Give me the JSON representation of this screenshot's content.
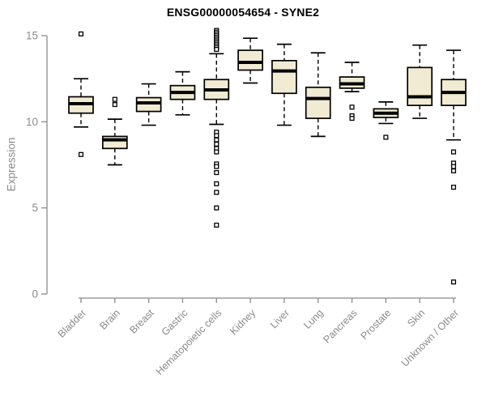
{
  "title": "ENSG00000054654 - SYNE2",
  "colors": {
    "box_fill": "#F0EBD2",
    "box_stroke": "#000000",
    "median": "#000000",
    "axis": "#8a8a8a",
    "outlier_fill": "#ffffff",
    "background": "#ffffff",
    "title": "#000000"
  },
  "chart_data": {
    "type": "boxplot",
    "title": "ENSG00000054654 - SYNE2",
    "xlabel": "",
    "ylabel": "Expression",
    "ylim": [
      0,
      15
    ],
    "yticks": [
      0,
      5,
      10,
      15
    ],
    "grid": false,
    "legend": "none",
    "categories": [
      "Bladder",
      "Brain",
      "Breast",
      "Gastric",
      "Hematopoietic cells",
      "Kidney",
      "Liver",
      "Lung",
      "Pancreas",
      "Prostate",
      "Skin",
      "Unknown / Other"
    ],
    "boxes": [
      {
        "category": "Bladder",
        "whisker_low": 9.7,
        "q1": 10.5,
        "median": 11.05,
        "q3": 11.45,
        "whisker_high": 12.5,
        "outliers": [
          15.1,
          8.1
        ]
      },
      {
        "category": "Brain",
        "whisker_low": 7.5,
        "q1": 8.45,
        "median": 8.95,
        "q3": 9.15,
        "whisker_high": 10.15,
        "outliers": [
          11.3,
          11.0
        ]
      },
      {
        "category": "Breast",
        "whisker_low": 9.8,
        "q1": 10.6,
        "median": 11.1,
        "q3": 11.4,
        "whisker_high": 12.2,
        "outliers": []
      },
      {
        "category": "Gastric",
        "whisker_low": 10.4,
        "q1": 11.3,
        "median": 11.7,
        "q3": 12.1,
        "whisker_high": 12.9,
        "outliers": []
      },
      {
        "category": "Hematopoietic cells",
        "whisker_low": 9.85,
        "q1": 11.3,
        "median": 11.85,
        "q3": 12.45,
        "whisker_high": 13.95,
        "outliers": [
          15.3,
          15.2,
          15.1,
          15.0,
          14.9,
          14.8,
          14.7,
          14.6,
          14.5,
          14.4,
          14.3,
          14.2,
          9.4,
          9.2,
          8.95,
          8.7,
          8.45,
          8.25,
          7.55,
          7.4,
          7.05,
          6.4,
          5.9,
          5.0,
          4.0
        ]
      },
      {
        "category": "Kidney",
        "whisker_low": 12.25,
        "q1": 13.0,
        "median": 13.45,
        "q3": 14.15,
        "whisker_high": 14.85,
        "outliers": []
      },
      {
        "category": "Liver",
        "whisker_low": 9.8,
        "q1": 11.65,
        "median": 12.95,
        "q3": 13.55,
        "whisker_high": 14.5,
        "outliers": []
      },
      {
        "category": "Lung",
        "whisker_low": 9.15,
        "q1": 10.2,
        "median": 11.35,
        "q3": 12.0,
        "whisker_high": 14.0,
        "outliers": []
      },
      {
        "category": "Pancreas",
        "whisker_low": 11.75,
        "q1": 11.95,
        "median": 12.2,
        "q3": 12.6,
        "whisker_high": 13.45,
        "outliers": [
          10.85,
          10.35,
          10.2
        ]
      },
      {
        "category": "Prostate",
        "whisker_low": 9.9,
        "q1": 10.25,
        "median": 10.5,
        "q3": 10.75,
        "whisker_high": 11.15,
        "outliers": [
          9.1
        ]
      },
      {
        "category": "Skin",
        "whisker_low": 10.2,
        "q1": 10.95,
        "median": 11.45,
        "q3": 13.15,
        "whisker_high": 14.45,
        "outliers": []
      },
      {
        "category": "Unknown / Other",
        "whisker_low": 8.95,
        "q1": 10.95,
        "median": 11.7,
        "q3": 12.45,
        "whisker_high": 14.15,
        "outliers": [
          8.25,
          7.6,
          7.4,
          7.15,
          6.2,
          0.7
        ]
      }
    ]
  }
}
